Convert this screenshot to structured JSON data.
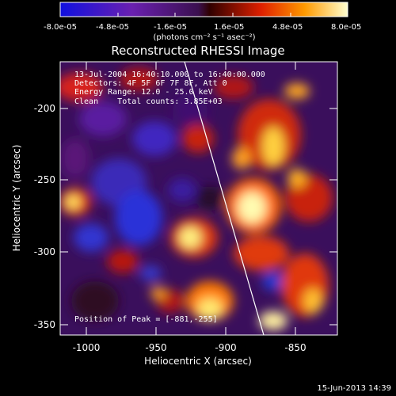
{
  "colorbar": {
    "ticks": [
      "-8.0e-05",
      "-4.8e-05",
      "-1.6e-05",
      "1.6e-05",
      "4.8e-05",
      "8.0e-05"
    ],
    "units": "(photons cm⁻² s⁻¹ asec⁻²)"
  },
  "title": "Reconstructed RHESSI Image",
  "annotations": {
    "time": "13-Jul-2004 16:40:10.000 to 16:40:00.000",
    "detectors": "Detectors: 4F 5F 6F 7F 8F, Att 0",
    "energy": "Energy Range: 12.0 - 25.0 keV",
    "clean": "Clean    Total counts: 3.85E+03",
    "peak": "Position of Peak = [-881,-255]"
  },
  "axes": {
    "xlabel": "Heliocentric X (arcsec)",
    "ylabel": "Heliocentric Y (arcsec)",
    "xticks": [
      "-1000",
      "-950",
      "-900",
      "-850"
    ],
    "yticks": [
      "-200",
      "-250",
      "-300",
      "-350"
    ]
  },
  "footer": {
    "date": "15-Jun-2013 14:39"
  }
}
